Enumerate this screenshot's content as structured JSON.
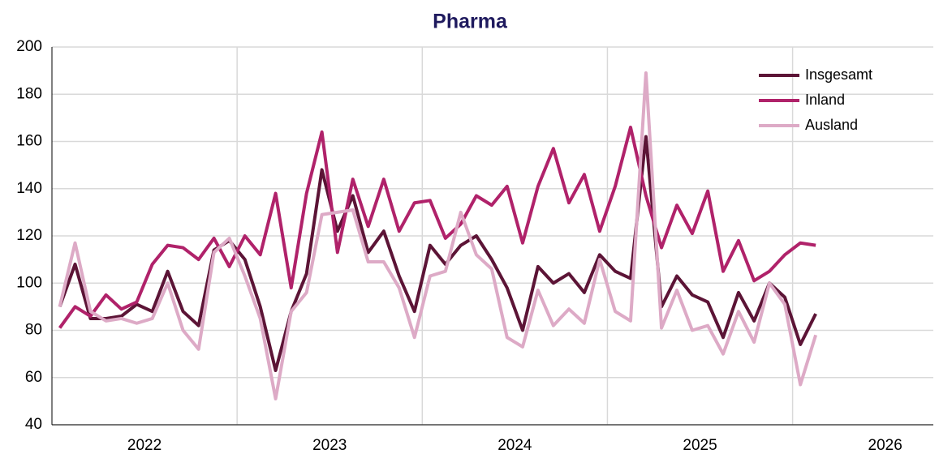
{
  "chart_data": {
    "type": "line",
    "title": "Pharma",
    "x": [
      2022.042,
      2022.125,
      2022.208,
      2022.292,
      2022.375,
      2022.458,
      2022.542,
      2022.625,
      2022.708,
      2022.792,
      2022.875,
      2022.958,
      2023.042,
      2023.125,
      2023.208,
      2023.292,
      2023.375,
      2023.458,
      2023.542,
      2023.625,
      2023.708,
      2023.792,
      2023.875,
      2023.958,
      2024.042,
      2024.125,
      2024.208,
      2024.292,
      2024.375,
      2024.458,
      2024.542,
      2024.625,
      2024.708,
      2024.792,
      2024.875,
      2024.958,
      2025.042,
      2025.125,
      2025.208,
      2025.292,
      2025.375,
      2025.458,
      2025.542,
      2025.625,
      2025.708,
      2025.792,
      2025.875,
      2025.958,
      2026.042,
      2026.125
    ],
    "series": [
      {
        "name": "Insgesamt",
        "color": "#5c1436",
        "values": [
          90,
          108,
          85,
          85,
          86,
          91,
          88,
          105,
          88,
          82,
          114,
          118,
          110,
          90,
          63,
          88,
          104,
          148,
          122,
          137,
          113,
          122,
          103,
          88,
          116,
          108,
          116,
          120,
          110,
          98,
          80,
          107,
          100,
          104,
          96,
          112,
          105,
          102,
          162,
          90,
          103,
          95,
          92,
          77,
          96,
          84,
          100,
          94,
          74,
          87
        ]
      },
      {
        "name": "Inland",
        "color": "#b0226a",
        "values": [
          81,
          90,
          86,
          95,
          89,
          92,
          108,
          116,
          115,
          110,
          119,
          107,
          120,
          112,
          138,
          98,
          138,
          164,
          113,
          144,
          124,
          144,
          122,
          134,
          135,
          119,
          125,
          137,
          133,
          141,
          117,
          141,
          157,
          134,
          146,
          122,
          141,
          166,
          137,
          115,
          133,
          121,
          139,
          105,
          118,
          101,
          105,
          112,
          117,
          116
        ]
      },
      {
        "name": "Ausland",
        "color": "#ddaac6",
        "values": [
          90,
          117,
          88,
          84,
          85,
          83,
          85,
          100,
          80,
          72,
          113,
          119,
          103,
          85,
          51,
          88,
          96,
          129,
          130,
          131,
          109,
          109,
          98,
          77,
          103,
          105,
          130,
          112,
          106,
          77,
          73,
          97,
          82,
          89,
          83,
          110,
          88,
          84,
          189,
          81,
          97,
          80,
          82,
          70,
          88,
          75,
          100,
          91,
          57,
          78
        ]
      }
    ],
    "xlim": [
      2022,
      2026.76
    ],
    "xticks": [
      {
        "value": 2022.5,
        "label": "2022"
      },
      {
        "value": 2023.5,
        "label": "2023"
      },
      {
        "value": 2024.5,
        "label": "2024"
      },
      {
        "value": 2025.5,
        "label": "2025"
      },
      {
        "value": 2026.5,
        "label": "2026"
      }
    ],
    "xgrid": [
      2023,
      2024,
      2025,
      2026
    ],
    "ylim": [
      40,
      200
    ],
    "yticks": [
      40,
      60,
      80,
      100,
      120,
      140,
      160,
      180,
      200
    ],
    "grid": true,
    "legend": "top-right"
  }
}
